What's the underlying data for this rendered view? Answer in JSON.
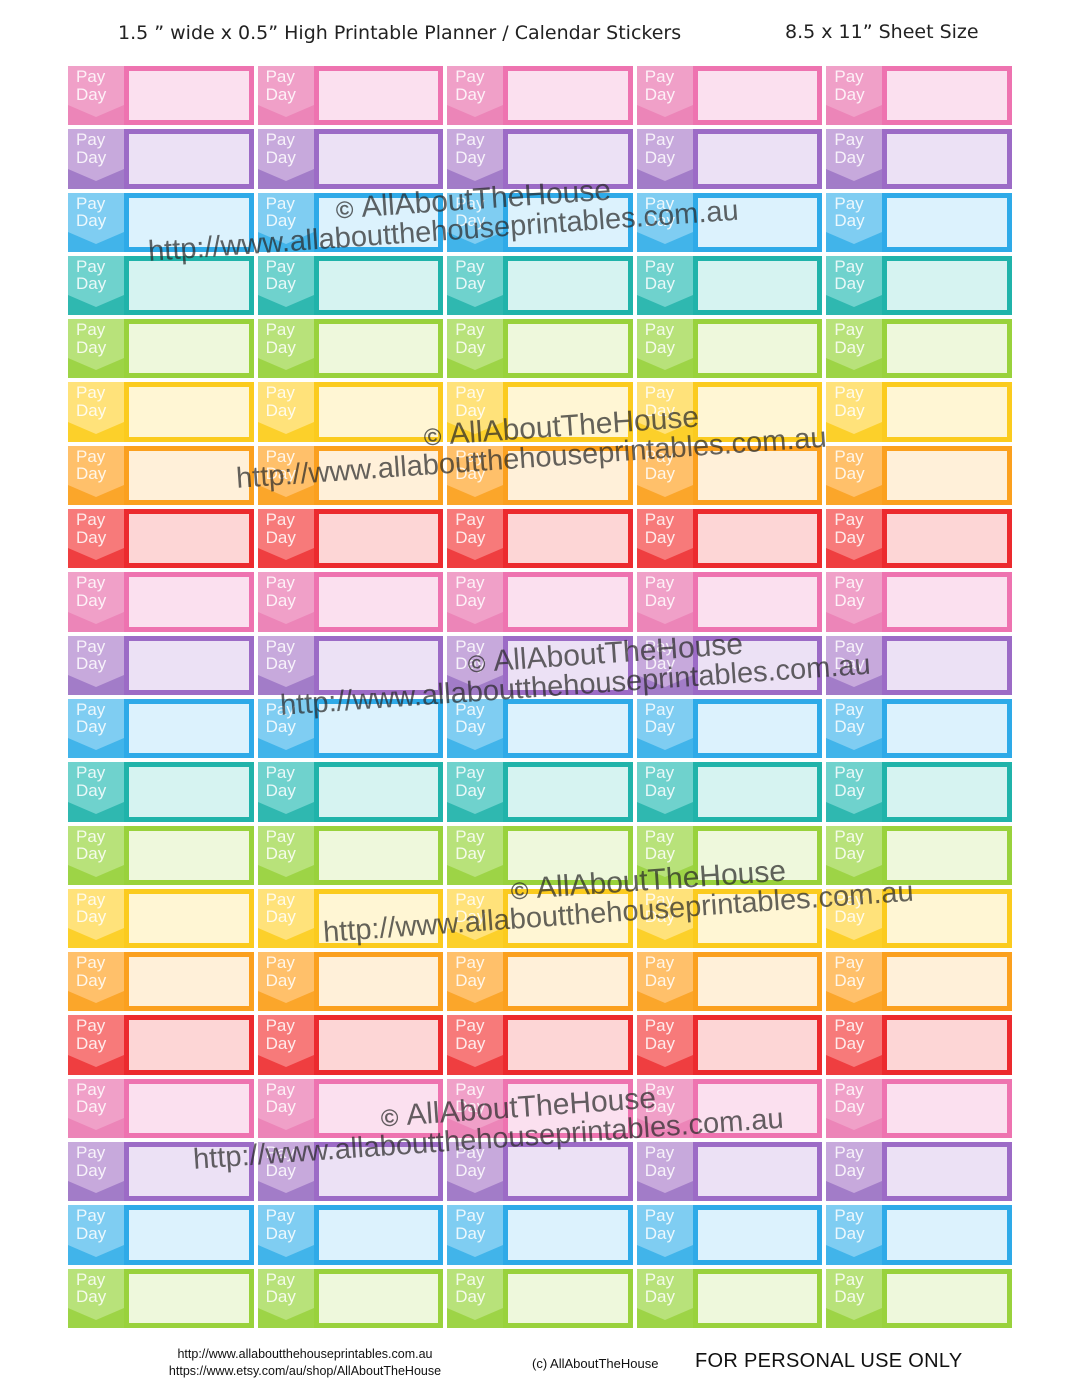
{
  "header": {
    "title": "1.5 ” wide x 0.5” High Printable Planner / Calendar Stickers",
    "sheet_size": "8.5 x 11” Sheet Size"
  },
  "sticker": {
    "label": "Pay\nDay",
    "columns": 5
  },
  "palette": [
    {
      "name": "pink",
      "tab": "#f0a0c8",
      "chev": "#ec85b8",
      "border": "#ee73b0",
      "fill": "#fbe0ef"
    },
    {
      "name": "purple",
      "tab": "#c7a9dc",
      "chev": "#a27cc8",
      "border": "#9c6bc6",
      "fill": "#ece1f5"
    },
    {
      "name": "blue",
      "tab": "#7fcdf2",
      "chev": "#41b4ea",
      "border": "#2eaae8",
      "fill": "#dcf2fd"
    },
    {
      "name": "teal",
      "tab": "#6fd2cd",
      "chev": "#2fb8b0",
      "border": "#20b3aa",
      "fill": "#d6f3f1"
    },
    {
      "name": "green",
      "tab": "#b8e27a",
      "chev": "#9dd446",
      "border": "#99d23c",
      "fill": "#eef8dc"
    },
    {
      "name": "yellow",
      "tab": "#ffe27a",
      "chev": "#fcd02a",
      "border": "#fbcb1e",
      "fill": "#fff6d4"
    },
    {
      "name": "orange",
      "tab": "#ffc06a",
      "chev": "#fba62a",
      "border": "#fba01e",
      "fill": "#fff0d9"
    },
    {
      "name": "red",
      "tab": "#f77a7a",
      "chev": "#ef3e40",
      "border": "#ec2a2e",
      "fill": "#fdd6d6"
    }
  ],
  "rows": [
    "pink",
    "purple",
    "blue",
    "teal",
    "green",
    "yellow",
    "orange",
    "red",
    "pink",
    "purple",
    "blue",
    "teal",
    "green",
    "yellow",
    "orange",
    "red",
    "pink",
    "purple",
    "blue",
    "green"
  ],
  "watermark": {
    "brand": "AllAboutTheHouse",
    "url": "http://www.allaboutthehouseprintables.com.au",
    "copyright_symbol": "©"
  },
  "footer": {
    "url_site": "http://www.allaboutthehouseprintables.com.au",
    "url_etsy": "https://www.etsy.com/au/shop/AllAboutTheHouse",
    "copyright": "(c) AllAboutTheHouse",
    "notice": "FOR PERSONAL USE ONLY"
  }
}
